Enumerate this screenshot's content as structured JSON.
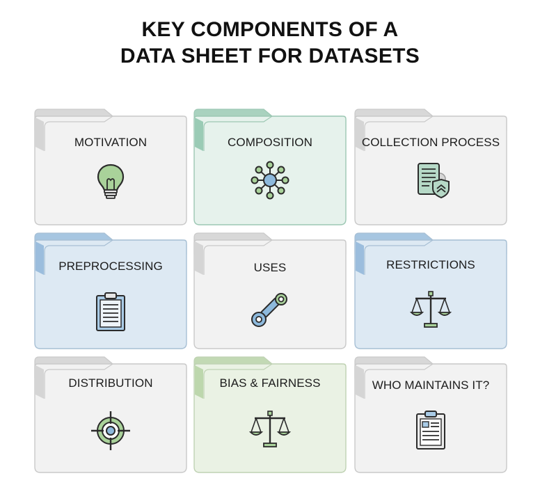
{
  "title": {
    "line1": "KEY COMPONENTS OF A",
    "line2": "DATA SHEET FOR DATASETS"
  },
  "cards": [
    {
      "label": "MOTIVATION",
      "icon": "lightbulb-icon",
      "theme": "gray"
    },
    {
      "label": "COMPOSITION",
      "icon": "network-icon",
      "theme": "teal"
    },
    {
      "label": "COLLECTION PROCESS",
      "icon": "document-shield-icon",
      "theme": "gray"
    },
    {
      "label": "PREPROCESSING",
      "icon": "clipboard-icon",
      "theme": "blue"
    },
    {
      "label": "USES",
      "icon": "link-icon",
      "theme": "gray"
    },
    {
      "label": "RESTRICTIONS",
      "icon": "scales-icon",
      "theme": "blue"
    },
    {
      "label": "DISTRIBUTION",
      "icon": "target-icon",
      "theme": "gray"
    },
    {
      "label": "BIAS & FAIRNESS",
      "icon": "scales-icon",
      "theme": "green"
    },
    {
      "label": "WHO MAINTAINS IT?",
      "icon": "clipboard-list-icon",
      "theme": "gray"
    }
  ],
  "themes": {
    "gray": {
      "fill": "#f2f2f2",
      "tab": "#d8d8d8",
      "stroke": "#c9c9c9",
      "accent": "#d0d0d0"
    },
    "teal": {
      "fill": "#e6f2ec",
      "tab": "#a9d2bf",
      "stroke": "#9cc7b3",
      "accent": "#8cc4ab"
    },
    "blue": {
      "fill": "#dde9f3",
      "tab": "#a7c6e1",
      "stroke": "#a7bfd4",
      "accent": "#8fb5d8"
    },
    "green": {
      "fill": "#eaf2e4",
      "tab": "#c2d9b4",
      "stroke": "#bfd2b3",
      "accent": "#b5d2a3"
    }
  }
}
